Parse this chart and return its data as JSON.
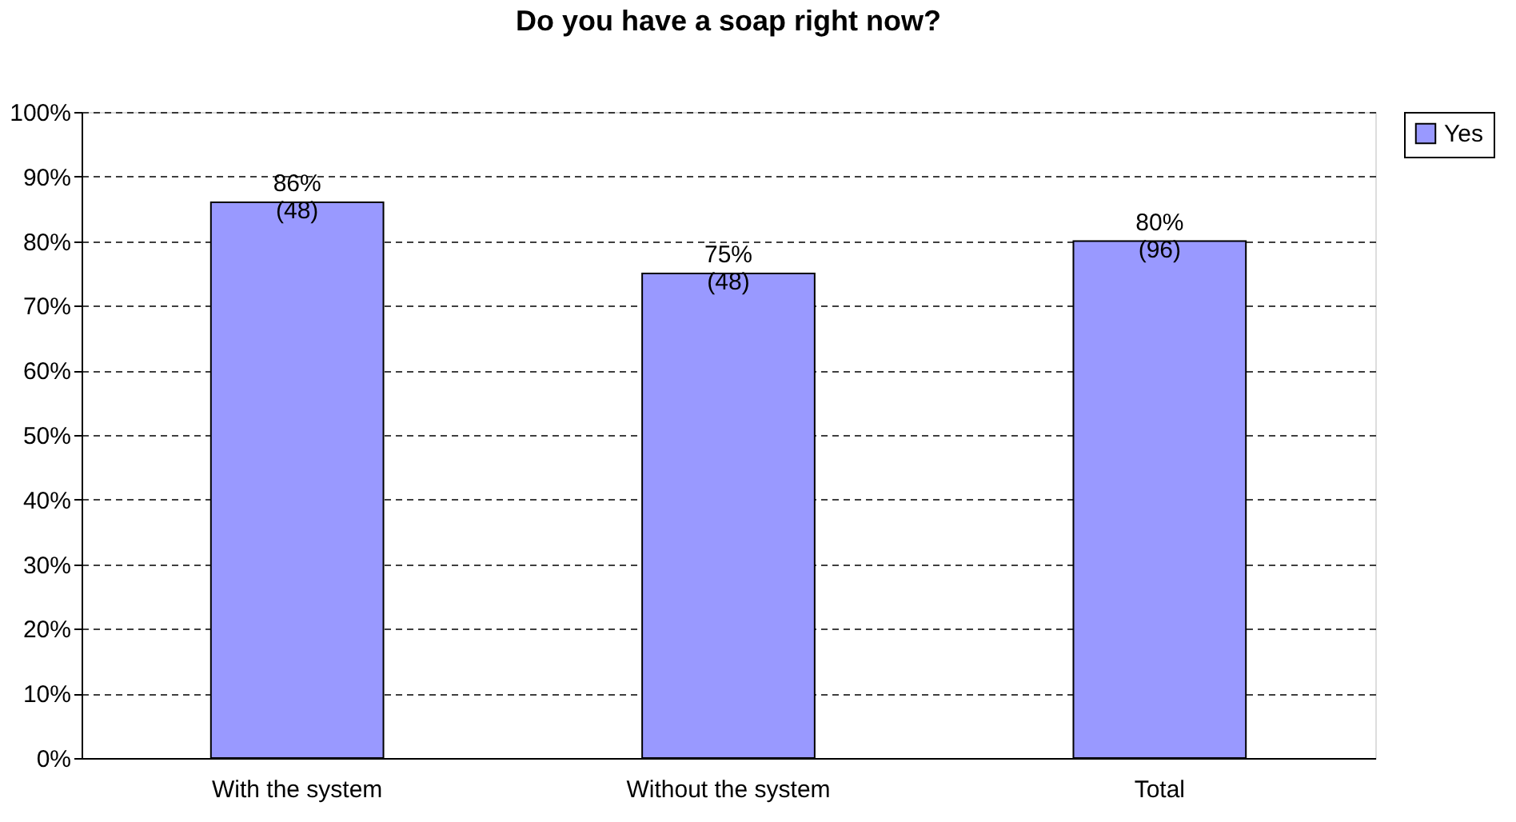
{
  "chart_data": {
    "type": "bar",
    "title": "Do you have a soap right now?",
    "categories": [
      "With the system",
      "Without the system",
      "Total"
    ],
    "series": [
      {
        "name": "Yes",
        "color": "#9999ff",
        "values": [
          86,
          75,
          80
        ],
        "value_labels": [
          "86%\n(48)",
          "75%\n(48)",
          "80%\n(96)"
        ]
      }
    ],
    "ylim": [
      0,
      100
    ],
    "yticks": [
      {
        "value": 0,
        "label": "0%"
      },
      {
        "value": 10,
        "label": "10%"
      },
      {
        "value": 20,
        "label": "20%"
      },
      {
        "value": 30,
        "label": "30%"
      },
      {
        "value": 40,
        "label": "40%"
      },
      {
        "value": 50,
        "label": "50%"
      },
      {
        "value": 60,
        "label": "60%"
      },
      {
        "value": 70,
        "label": "70%"
      },
      {
        "value": 80,
        "label": "80%"
      },
      {
        "value": 90,
        "label": "90%"
      },
      {
        "value": 100,
        "label": "100%"
      }
    ],
    "grid": "y",
    "legend": "right",
    "line_style": "dashed"
  }
}
